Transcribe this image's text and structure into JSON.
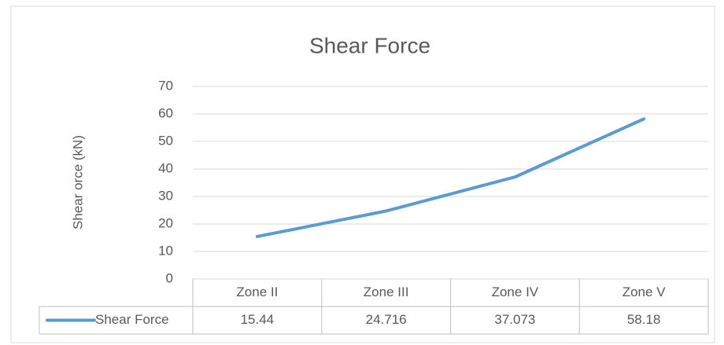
{
  "chart_data": {
    "type": "line",
    "title": "Shear Force",
    "y_label": "Shear orce (kN)",
    "categories": [
      "Zone II",
      "Zone III",
      "Zone IV",
      "Zone V"
    ],
    "series": [
      {
        "name": "Shear Force",
        "color": "#5b9bd5",
        "values": [
          15.44,
          24.716,
          37.073,
          58.18
        ]
      }
    ],
    "ylim": [
      0,
      70
    ],
    "yticks": [
      0,
      10,
      20,
      30,
      40,
      50,
      60,
      70
    ],
    "grid": true,
    "data_table": true
  }
}
